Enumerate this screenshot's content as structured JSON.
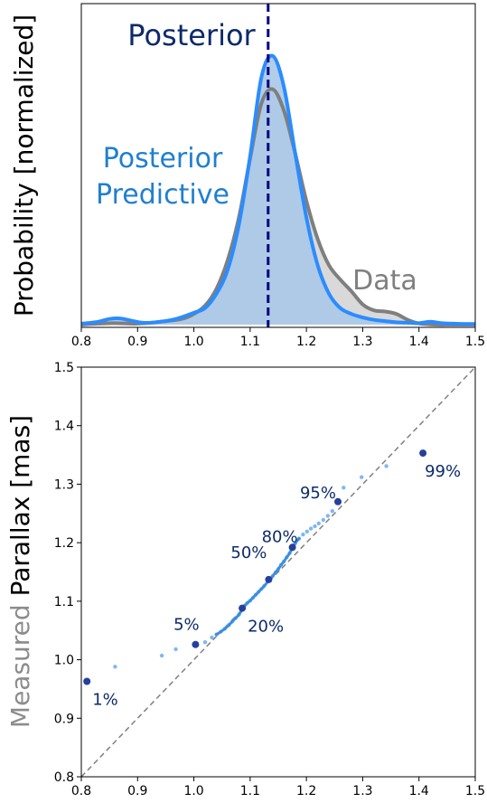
{
  "colors": {
    "data_line": "#7f7f7f",
    "data_fill": "#d9d9d9",
    "predictive_line": "#2b8cff",
    "predictive_fill": "#a9c8e8",
    "posterior_line": "#00007f",
    "posterior_text": "#0d2a6b",
    "predictive_text": "#1f7fd0",
    "points_light": "#7fb8f0",
    "points_dark": "#26409a",
    "percent_text": "#0d2a6b",
    "diagonal": "#808080",
    "ylabel_measured": "#8c8c8c",
    "ylabel_rest": "#000000"
  },
  "chart_data": [
    {
      "type": "area",
      "ylabel": "Probability [normalized]",
      "xlim": [
        0.8,
        1.5
      ],
      "xticks": [
        "0.8",
        "0.9",
        "1.0",
        "1.1",
        "1.2",
        "1.3",
        "1.4",
        "1.5"
      ],
      "annotations": {
        "posterior": "Posterior",
        "predictive_line1": "Posterior",
        "predictive_line2": "Predictive",
        "data": "Data"
      },
      "posterior_value": 1.132,
      "series": [
        {
          "name": "Data",
          "x": [
            0.8,
            0.83,
            0.86,
            0.9,
            0.94,
            0.98,
            1.0,
            1.02,
            1.04,
            1.06,
            1.08,
            1.1,
            1.12,
            1.14,
            1.16,
            1.18,
            1.2,
            1.22,
            1.24,
            1.26,
            1.28,
            1.3,
            1.32,
            1.34,
            1.36,
            1.38,
            1.4,
            1.43,
            1.46,
            1.5
          ],
          "y": [
            0.0,
            0.004,
            0.006,
            0.004,
            0.012,
            0.025,
            0.045,
            0.08,
            0.15,
            0.27,
            0.45,
            0.7,
            0.93,
            0.99,
            0.9,
            0.72,
            0.52,
            0.36,
            0.25,
            0.19,
            0.14,
            0.085,
            0.06,
            0.055,
            0.045,
            0.02,
            0.005,
            0.0,
            0.0,
            0.0
          ]
        },
        {
          "name": "Posterior Predictive",
          "x": [
            0.8,
            0.83,
            0.85,
            0.87,
            0.89,
            0.91,
            0.94,
            0.97,
            1.0,
            1.02,
            1.04,
            1.06,
            1.08,
            1.1,
            1.12,
            1.14,
            1.16,
            1.18,
            1.2,
            1.22,
            1.24,
            1.26,
            1.28,
            1.3,
            1.32,
            1.34,
            1.36,
            1.38,
            1.4,
            1.42,
            1.44,
            1.46,
            1.5
          ],
          "y": [
            0.004,
            0.012,
            0.024,
            0.026,
            0.016,
            0.008,
            0.012,
            0.025,
            0.05,
            0.07,
            0.13,
            0.23,
            0.42,
            0.71,
            1.04,
            1.13,
            1.0,
            0.72,
            0.45,
            0.25,
            0.13,
            0.07,
            0.045,
            0.03,
            0.02,
            0.015,
            0.01,
            0.008,
            0.006,
            0.012,
            0.006,
            0.004,
            0.003
          ]
        }
      ]
    },
    {
      "type": "scatter",
      "ylabel_part1": "Measured",
      "ylabel_part2": "Parallax [mas]",
      "xlim": [
        0.8,
        1.5
      ],
      "ylim": [
        0.8,
        1.5
      ],
      "xticks": [
        "0.8",
        "0.9",
        "1.0",
        "1.1",
        "1.2",
        "1.3",
        "1.4",
        "1.5"
      ],
      "yticks": [
        "0.8",
        "0.9",
        "1.0",
        "1.1",
        "1.2",
        "1.3",
        "1.4",
        "1.5"
      ],
      "diagonal": [
        [
          0.8,
          0.8
        ],
        [
          1.5,
          1.5
        ]
      ],
      "points": [
        [
          0.86,
          0.988
        ],
        [
          0.943,
          1.007
        ],
        [
          0.968,
          1.018
        ],
        [
          1.02,
          1.03
        ],
        [
          1.032,
          1.038
        ],
        [
          1.04,
          1.043
        ],
        [
          1.048,
          1.048
        ],
        [
          1.055,
          1.053
        ],
        [
          1.062,
          1.059
        ],
        [
          1.068,
          1.065
        ],
        [
          1.074,
          1.071
        ],
        [
          1.08,
          1.077
        ],
        [
          1.09,
          1.092
        ],
        [
          1.095,
          1.097
        ],
        [
          1.1,
          1.101
        ],
        [
          1.105,
          1.106
        ],
        [
          1.11,
          1.111
        ],
        [
          1.115,
          1.116
        ],
        [
          1.12,
          1.121
        ],
        [
          1.125,
          1.126
        ],
        [
          1.14,
          1.143
        ],
        [
          1.145,
          1.149
        ],
        [
          1.15,
          1.155
        ],
        [
          1.155,
          1.162
        ],
        [
          1.16,
          1.168
        ],
        [
          1.165,
          1.175
        ],
        [
          1.17,
          1.182
        ],
        [
          1.18,
          1.199
        ],
        [
          1.187,
          1.207
        ],
        [
          1.194,
          1.214
        ],
        [
          1.201,
          1.219
        ],
        [
          1.208,
          1.224
        ],
        [
          1.215,
          1.228
        ],
        [
          1.222,
          1.233
        ],
        [
          1.23,
          1.239
        ],
        [
          1.238,
          1.246
        ],
        [
          1.246,
          1.254
        ],
        [
          1.266,
          1.294
        ],
        [
          1.298,
          1.312
        ],
        [
          1.342,
          1.331
        ]
      ],
      "quantiles": [
        {
          "label": "1%",
          "x": 0.81,
          "y": 0.963
        },
        {
          "label": "5%",
          "x": 1.003,
          "y": 1.026
        },
        {
          "label": "20%",
          "x": 1.086,
          "y": 1.088
        },
        {
          "label": "50%",
          "x": 1.133,
          "y": 1.137
        },
        {
          "label": "80%",
          "x": 1.175,
          "y": 1.192
        },
        {
          "label": "95%",
          "x": 1.256,
          "y": 1.27
        },
        {
          "label": "99%",
          "x": 1.407,
          "y": 1.353
        }
      ]
    }
  ]
}
